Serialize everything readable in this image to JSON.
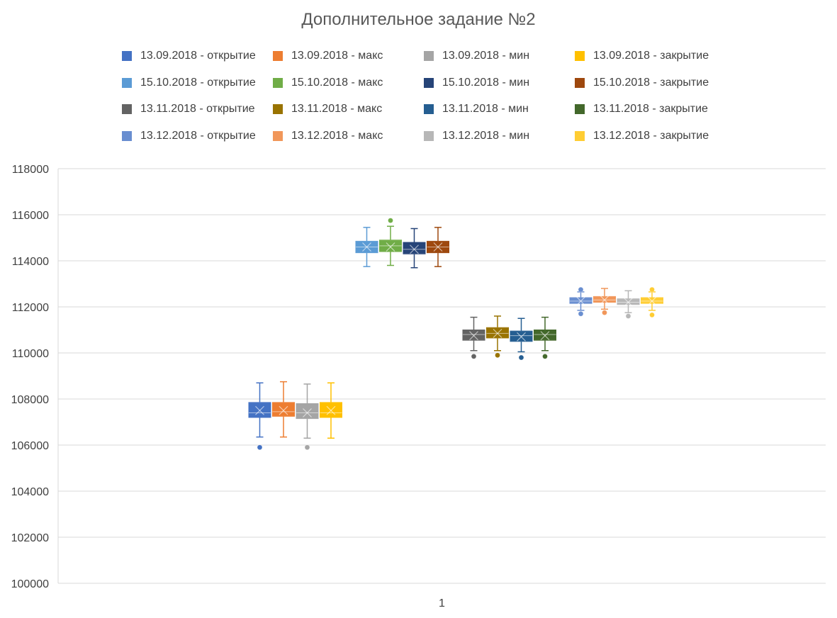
{
  "chart_data": {
    "type": "box",
    "title": "Дополнительное задание №2",
    "xlabel": "",
    "ylabel": "",
    "categories": [
      "1"
    ],
    "ylim": [
      100000,
      118000
    ],
    "yticks": [
      "100000",
      "102000",
      "104000",
      "106000",
      "108000",
      "110000",
      "112000",
      "114000",
      "116000",
      "118000"
    ],
    "grid": true,
    "legend_position": "top",
    "series": [
      {
        "name": "13.09.2018 - открытие",
        "color": "#4472c4",
        "min": 106350,
        "q1": 107200,
        "median": 107400,
        "q3": 107850,
        "max": 108700,
        "mean": 107500,
        "outliers": [
          105900
        ]
      },
      {
        "name": "13.09.2018 - макс",
        "color": "#ed7d31",
        "min": 106350,
        "q1": 107250,
        "median": 107450,
        "q3": 107850,
        "max": 108750,
        "mean": 107500,
        "outliers": []
      },
      {
        "name": "13.09.2018 - мин",
        "color": "#a5a5a5",
        "min": 106300,
        "q1": 107150,
        "median": 107400,
        "q3": 107800,
        "max": 108650,
        "mean": 107400,
        "outliers": [
          105900
        ]
      },
      {
        "name": "13.09.2018 - закрытие",
        "color": "#ffc000",
        "min": 106300,
        "q1": 107200,
        "median": 107400,
        "q3": 107850,
        "max": 108700,
        "mean": 107500,
        "outliers": []
      },
      {
        "name": "15.10.2018 - открытие",
        "color": "#5b9bd5",
        "min": 113750,
        "q1": 114350,
        "median": 114600,
        "q3": 114850,
        "max": 115450,
        "mean": 114600,
        "outliers": []
      },
      {
        "name": "15.10.2018 - макс",
        "color": "#70ad47",
        "min": 113800,
        "q1": 114400,
        "median": 114650,
        "q3": 114900,
        "max": 115500,
        "mean": 114600,
        "outliers": [
          115750
        ]
      },
      {
        "name": "15.10.2018 - мин",
        "color": "#264478",
        "min": 113700,
        "q1": 114300,
        "median": 114500,
        "q3": 114800,
        "max": 115400,
        "mean": 114500,
        "outliers": []
      },
      {
        "name": "15.10.2018 - закрытие",
        "color": "#9e480e",
        "min": 113750,
        "q1": 114350,
        "median": 114600,
        "q3": 114850,
        "max": 115450,
        "mean": 114600,
        "outliers": []
      },
      {
        "name": "13.11.2018 - открытие",
        "color": "#636363",
        "min": 110100,
        "q1": 110550,
        "median": 110800,
        "q3": 111000,
        "max": 111550,
        "mean": 110750,
        "outliers": [
          109850
        ]
      },
      {
        "name": "13.11.2018 - макс",
        "color": "#997300",
        "min": 110100,
        "q1": 110650,
        "median": 110850,
        "q3": 111100,
        "max": 111600,
        "mean": 110850,
        "outliers": [
          109900
        ]
      },
      {
        "name": "13.11.2018 - мин",
        "color": "#255e91",
        "min": 110050,
        "q1": 110500,
        "median": 110750,
        "q3": 110950,
        "max": 111500,
        "mean": 110700,
        "outliers": [
          109800
        ]
      },
      {
        "name": "13.11.2018 - закрытие",
        "color": "#43682b",
        "min": 110100,
        "q1": 110550,
        "median": 110800,
        "q3": 111000,
        "max": 111550,
        "mean": 110750,
        "outliers": [
          109850
        ]
      },
      {
        "name": "13.12.2018 - открытие",
        "color": "#698ed0",
        "min": 111850,
        "q1": 112150,
        "median": 112250,
        "q3": 112400,
        "max": 112650,
        "mean": 112250,
        "outliers": [
          112750,
          111700
        ]
      },
      {
        "name": "13.12.2018 - макс",
        "color": "#f1975a",
        "min": 111900,
        "q1": 112200,
        "median": 112300,
        "q3": 112450,
        "max": 112800,
        "mean": 112300,
        "outliers": [
          111750
        ]
      },
      {
        "name": "13.12.2018 - мин",
        "color": "#b7b7b7",
        "min": 111750,
        "q1": 112100,
        "median": 112200,
        "q3": 112350,
        "max": 112700,
        "mean": 112200,
        "outliers": [
          111600
        ]
      },
      {
        "name": "13.12.2018 - закрытие",
        "color": "#ffcd33",
        "min": 111850,
        "q1": 112150,
        "median": 112250,
        "q3": 112400,
        "max": 112650,
        "mean": 112250,
        "outliers": [
          112750,
          111650
        ]
      }
    ]
  }
}
